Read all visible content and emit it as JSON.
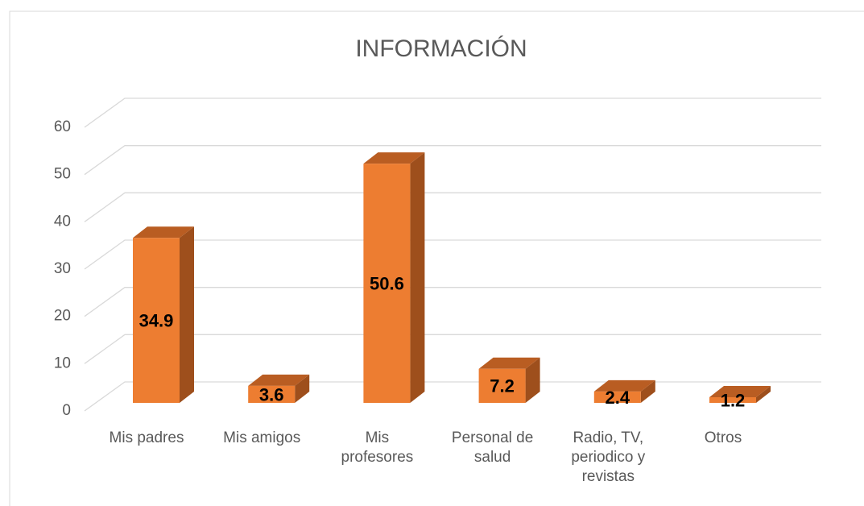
{
  "chart_data": {
    "type": "bar3d",
    "title": "INFORMACIÓN",
    "categories": [
      "Mis padres",
      "Mis amigos",
      "Mis profesores",
      "Personal de salud",
      "Radio, TV, periodico y revistas",
      "Otros"
    ],
    "values": [
      34.9,
      3.6,
      50.6,
      7.2,
      2.4,
      1.2
    ],
    "color": "#ed7d31",
    "ylim": [
      0,
      60
    ],
    "yticks": [
      0,
      10,
      20,
      30,
      40,
      50,
      60
    ],
    "grid": true
  }
}
